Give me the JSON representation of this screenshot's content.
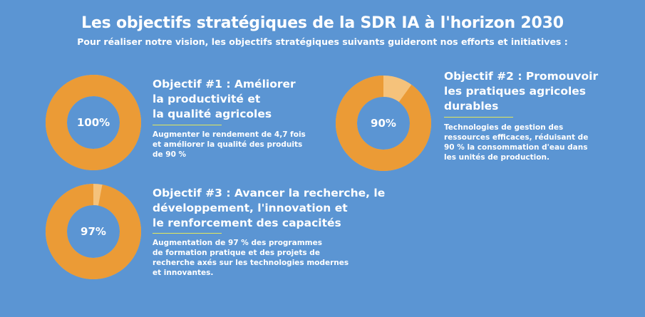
{
  "header": {
    "title": "Les objectifs stratégiques de la SDR IA à l'horizon 2030",
    "subtitle": "Pour réaliser notre vision, les objectifs stratégiques suivants guideront nos efforts et initiatives :"
  },
  "colors": {
    "background": "#5b95d3",
    "ring_filled": "#eb9b36",
    "ring_remaining": "#f5c27b",
    "rule": "#e3e85a",
    "text": "#ffffff"
  },
  "objectives": [
    {
      "percent_label": "100%",
      "fill_fraction": 1.0,
      "title_lines": [
        "Objectif #1 : Améliorer",
        "la productivité et",
        "la qualité agricoles"
      ],
      "desc_lines": [
        "Augmenter le rendement de 4,7 fois",
        "et améliorer la qualité des produits",
        "de 90 %"
      ]
    },
    {
      "percent_label": "90%",
      "fill_fraction": 0.9,
      "title_lines": [
        "Objectif #2 : Promouvoir",
        "les pratiques agricoles",
        "durables"
      ],
      "desc_lines": [
        "Technologies de gestion des",
        "ressources efficaces, réduisant de",
        "90 % la consommation d'eau dans",
        "les unités de production."
      ]
    },
    {
      "percent_label": "97%",
      "fill_fraction": 0.97,
      "title_lines": [
        "Objectif #3 : Avancer la recherche, le",
        "développement, l'innovation et",
        "le renforcement des capacités"
      ],
      "desc_lines": [
        "Augmentation de 97 % des programmes",
        "de formation pratique et des projets de",
        "recherche axés sur les technologies modernes",
        "et innovantes."
      ]
    }
  ]
}
